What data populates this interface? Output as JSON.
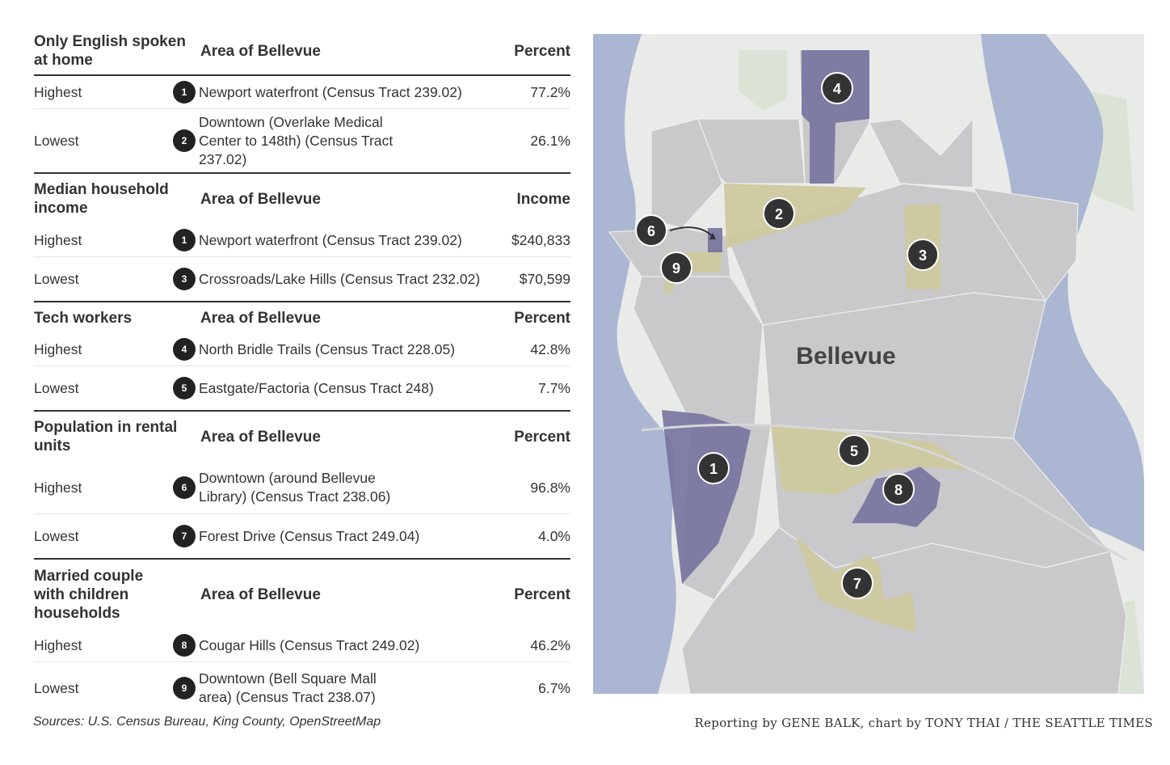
{
  "sections": [
    {
      "category": "Only English spoken at home",
      "area_header": "Area of Bellevue",
      "value_header": "Percent",
      "rows": [
        {
          "label": "Highest",
          "marker": "1",
          "area": "Newport waterfront (Census Tract 239.02)",
          "value": "77.2%"
        },
        {
          "label": "Lowest",
          "marker": "2",
          "area": "Downtown (Overlake Medical Center to 148th) (Census Tract 237.02)",
          "value": "26.1%"
        }
      ]
    },
    {
      "category": "Median household income",
      "area_header": "Area of Bellevue",
      "value_header": "Income",
      "rows": [
        {
          "label": "Highest",
          "marker": "1",
          "area": "Newport waterfront (Census Tract 239.02)",
          "value": "$240,833"
        },
        {
          "label": "Lowest",
          "marker": "3",
          "area": "Crossroads/Lake Hills (Census Tract 232.02)",
          "value": "$70,599"
        }
      ]
    },
    {
      "category": "Tech workers",
      "area_header": "Area of Bellevue",
      "value_header": "Percent",
      "rows": [
        {
          "label": "Highest",
          "marker": "4",
          "area": "North Bridle Trails (Census Tract 228.05)",
          "value": "42.8%"
        },
        {
          "label": "Lowest",
          "marker": "5",
          "area": "Eastgate/Factoria (Census Tract 248)",
          "value": "7.7%"
        }
      ]
    },
    {
      "category": "Population in rental units",
      "area_header": "Area of Bellevue",
      "value_header": "Percent",
      "rows": [
        {
          "label": "Highest",
          "marker": "6",
          "area": "Downtown (around Bellevue Library) (Census Tract 238.06)",
          "value": "96.8%"
        },
        {
          "label": "Lowest",
          "marker": "7",
          "area": "Forest Drive (Census Tract 249.04)",
          "value": "4.0%"
        }
      ]
    },
    {
      "category": "Married couple with children households",
      "area_header": "Area of Bellevue",
      "value_header": "Percent",
      "rows": [
        {
          "label": "Highest",
          "marker": "8",
          "area": "Cougar Hills (Census Tract 249.02)",
          "value": "46.2%"
        },
        {
          "label": "Lowest",
          "marker": "9",
          "area": "Downtown (Bell Square Mall area) (Census Tract 238.07)",
          "value": "6.7%"
        }
      ]
    }
  ],
  "sources": "Sources: U.S. Census Bureau, King County, OpenStreetMap",
  "credit": "Reporting by GENE BALK, chart by TONY THAI / THE SEATTLE TIMES",
  "map": {
    "city_label": "Bellevue",
    "markers": [
      "1",
      "2",
      "3",
      "4",
      "5",
      "6",
      "7",
      "8",
      "9"
    ],
    "colors": {
      "water": "#aab6d2",
      "land": "#e9ebe8",
      "park": "#dbe3d6",
      "tract": "#c9c9cc",
      "tract_border": "#eeeeee",
      "highest_tract": "#75739f",
      "lowest_tract": "#cdc99e",
      "marker": "#333333"
    }
  }
}
